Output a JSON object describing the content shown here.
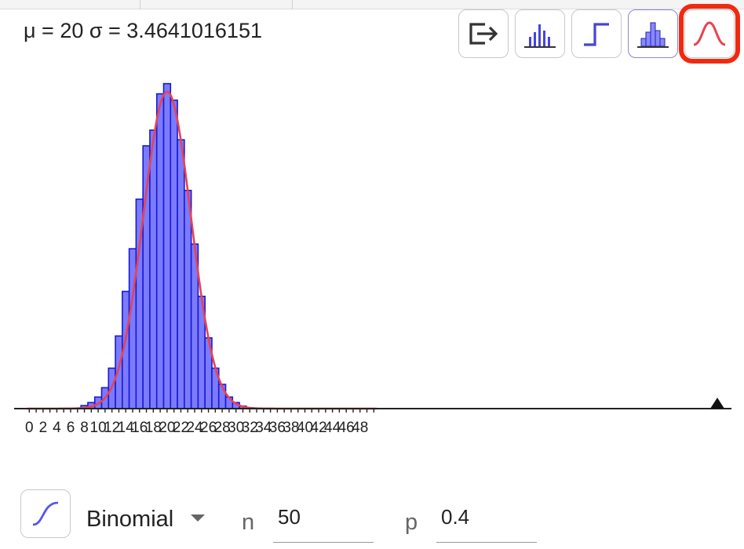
{
  "stats_text": "μ = 20 σ = 3.4641016151",
  "toolbar": [
    {
      "name": "export-button",
      "icon": "export-icon"
    },
    {
      "name": "bar-graph-button",
      "icon": "bar-graph-icon"
    },
    {
      "name": "step-graph-button",
      "icon": "step-graph-icon"
    },
    {
      "name": "histogram-button",
      "icon": "histogram-icon"
    },
    {
      "name": "normal-overlay-button",
      "icon": "normal-curve-icon",
      "selected": true
    }
  ],
  "colors": {
    "bar_fill": "#7b7bff",
    "bar_stroke": "#1a1ad0",
    "curve": "#e8434f",
    "axis": "#222222",
    "highlight": "#f02a10"
  },
  "chart_data": {
    "type": "bar",
    "distribution": "Binomial",
    "n": 50,
    "p": 0.4,
    "x_tick_labels": [
      "0",
      "2",
      "4",
      "6",
      "8",
      "10",
      "12",
      "14",
      "16",
      "18",
      "20",
      "22",
      "24",
      "26",
      "28",
      "30",
      "32",
      "34",
      "36",
      "38",
      "40",
      "42",
      "44",
      "46",
      "48"
    ],
    "xlim": [
      -0.5,
      50
    ],
    "ylim": [
      0,
      0.118
    ],
    "overlay": {
      "type": "normal-curve",
      "mean": 20,
      "sd": 3.4641016151
    },
    "bars": [
      {
        "x": 8,
        "y": 0.0011
      },
      {
        "x": 9,
        "y": 0.0022
      },
      {
        "x": 10,
        "y": 0.0042
      },
      {
        "x": 11,
        "y": 0.0076
      },
      {
        "x": 12,
        "y": 0.0147
      },
      {
        "x": 13,
        "y": 0.0264
      },
      {
        "x": 14,
        "y": 0.0426
      },
      {
        "x": 15,
        "y": 0.0581
      },
      {
        "x": 16,
        "y": 0.0761
      },
      {
        "x": 17,
        "y": 0.0955
      },
      {
        "x": 18,
        "y": 0.1012
      },
      {
        "x": 19,
        "y": 0.1144
      },
      {
        "x": 20,
        "y": 0.1181
      },
      {
        "x": 21,
        "y": 0.1121
      },
      {
        "x": 22,
        "y": 0.0977
      },
      {
        "x": 23,
        "y": 0.0793
      },
      {
        "x": 24,
        "y": 0.0598
      },
      {
        "x": 25,
        "y": 0.0408
      },
      {
        "x": 26,
        "y": 0.0257
      },
      {
        "x": 27,
        "y": 0.0147
      },
      {
        "x": 28,
        "y": 0.0088
      },
      {
        "x": 29,
        "y": 0.0042
      },
      {
        "x": 30,
        "y": 0.0022
      },
      {
        "x": 31,
        "y": 0.0009
      },
      {
        "x": 32,
        "y": 0.0003
      }
    ]
  },
  "bottom": {
    "cdf_button_icon": "cumulative-icon",
    "distribution_label": "Binomial",
    "n_label": "n",
    "n_value": "50",
    "p_label": "p",
    "p_value": "0.4"
  }
}
